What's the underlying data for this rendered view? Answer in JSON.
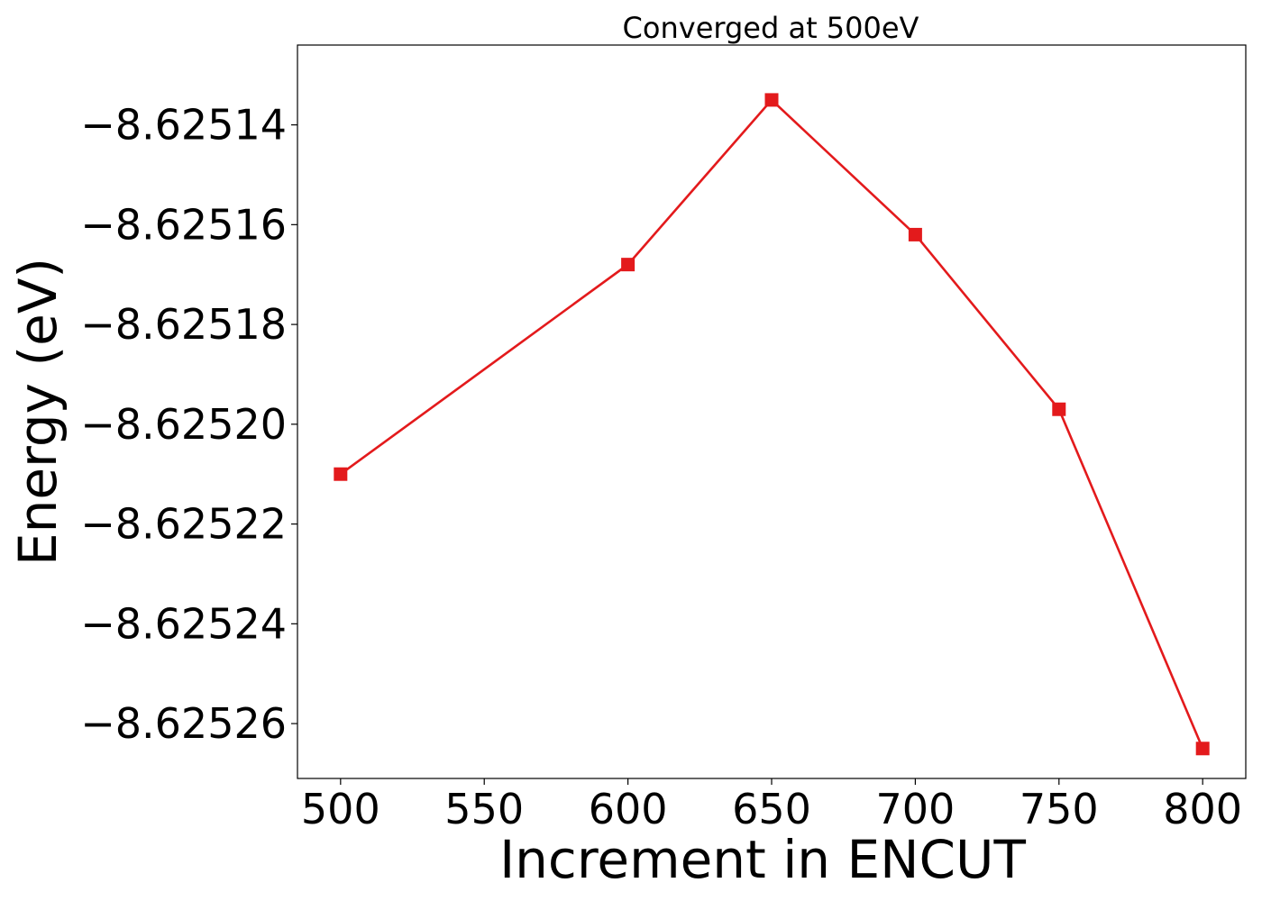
{
  "chart_data": {
    "type": "line",
    "title": "Converged at 500eV",
    "xlabel": "Increment in ENCUT",
    "ylabel": "Energy (eV)",
    "xlim": [
      485,
      815
    ],
    "ylim": [
      -8.625271,
      -8.625124
    ],
    "xticks": [
      500,
      550,
      600,
      650,
      700,
      750,
      800
    ],
    "xtick_labels": [
      "500",
      "550",
      "600",
      "650",
      "700",
      "750",
      "800"
    ],
    "yticks": [
      -8.62514,
      -8.62516,
      -8.62518,
      -8.6252,
      -8.62522,
      -8.62524,
      -8.62526
    ],
    "ytick_labels": [
      "−8.62514",
      "−8.62516",
      "−8.62518",
      "−8.62520",
      "−8.62522",
      "−8.62524",
      "−8.62526"
    ],
    "grid": false,
    "legend": false,
    "series": [
      {
        "color": "#e31a1c",
        "marker": "square",
        "x": [
          500,
          600,
          650,
          700,
          750,
          800
        ],
        "y": [
          -8.62521,
          -8.625168,
          -8.625135,
          -8.625162,
          -8.625197,
          -8.625265
        ]
      }
    ]
  }
}
